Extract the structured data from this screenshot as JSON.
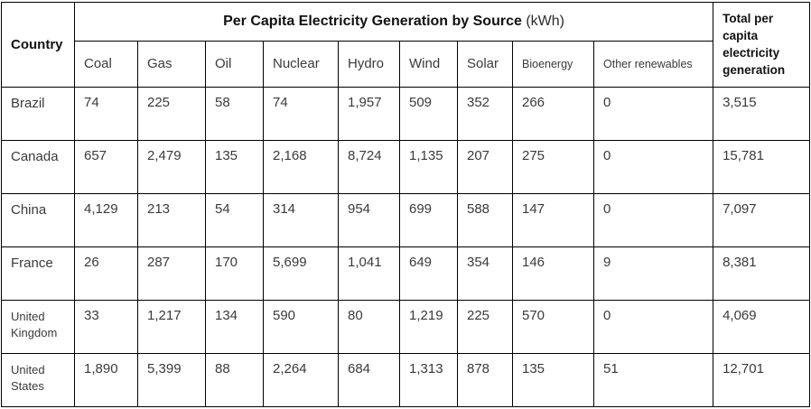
{
  "table": {
    "corner_header": "Country",
    "group_title": "Per Capita Electricity Generation by Source",
    "group_unit": "(kWh)"
  },
  "chart_data": {
    "type": "table",
    "title": "Per Capita Electricity Generation by Source (kWh)",
    "row_header": "Country",
    "source_columns": [
      "Coal",
      "Gas",
      "Oil",
      "Nuclear",
      "Hydro",
      "Wind",
      "Solar",
      "Bioenergy",
      "Other renewables"
    ],
    "total_column": "Total per capita electricity generation",
    "rows": [
      {
        "country": "Brazil",
        "values": [
          74,
          225,
          58,
          74,
          1957,
          509,
          352,
          266,
          0
        ],
        "total": 3515
      },
      {
        "country": "Canada",
        "values": [
          657,
          2479,
          135,
          2168,
          8724,
          1135,
          207,
          275,
          0
        ],
        "total": 15781
      },
      {
        "country": "China",
        "values": [
          4129,
          213,
          54,
          314,
          954,
          699,
          588,
          147,
          0
        ],
        "total": 7097
      },
      {
        "country": "France",
        "values": [
          26,
          287,
          170,
          5699,
          1041,
          649,
          354,
          146,
          9
        ],
        "total": 8381
      },
      {
        "country": "United Kingdom",
        "values": [
          33,
          1217,
          134,
          590,
          80,
          1219,
          225,
          570,
          0
        ],
        "total": 4069
      },
      {
        "country": "United States",
        "values": [
          1890,
          5399,
          88,
          2264,
          684,
          1313,
          878,
          135,
          51
        ],
        "total": 12701
      }
    ]
  },
  "colors": {
    "border": "#000000",
    "header_text": "#111111",
    "body_text": "#3a3a3a",
    "background": "#ffffff"
  }
}
